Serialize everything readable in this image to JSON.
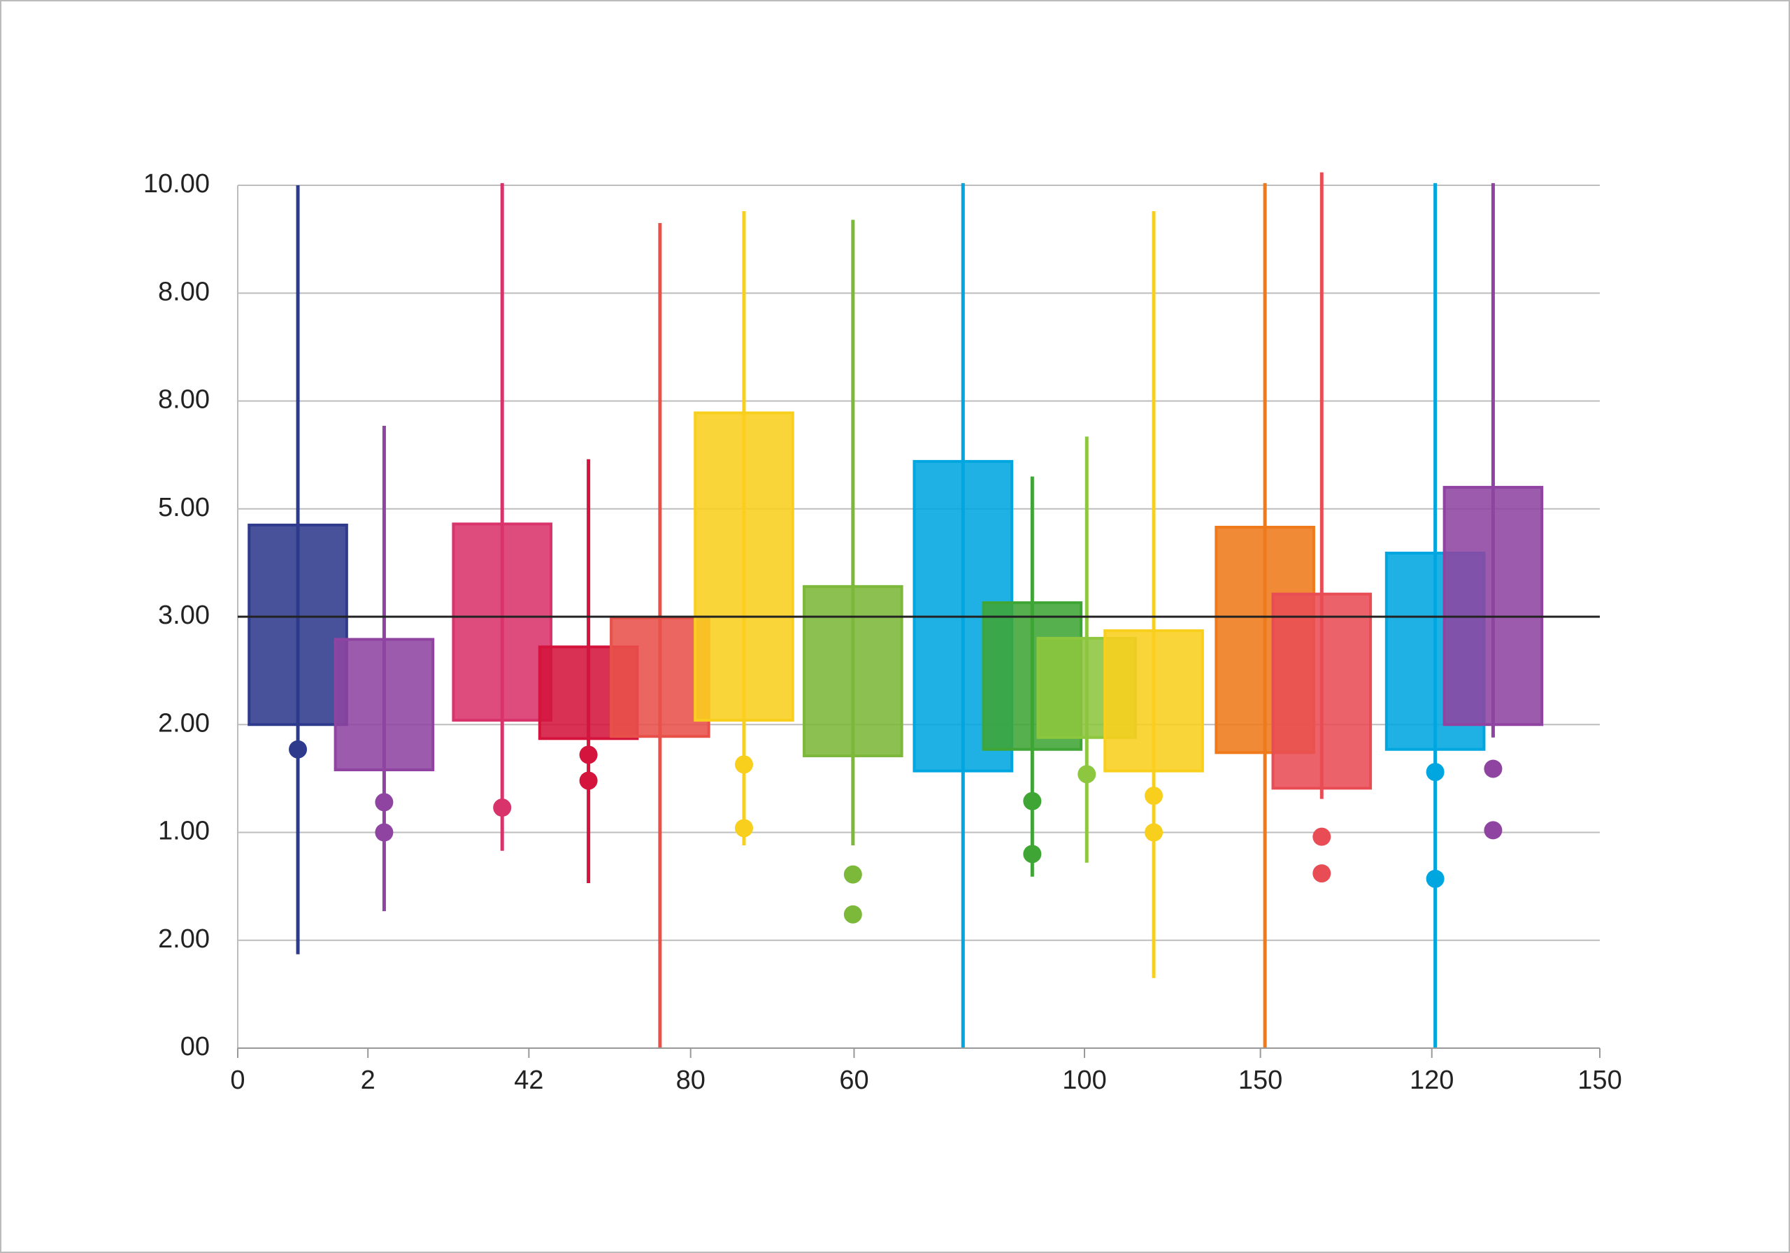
{
  "chart_data": {
    "type": "box",
    "reference_line": 4,
    "xlim": [
      0,
      12
    ],
    "xticks": [
      {
        "value": 0,
        "label": "0"
      },
      {
        "value": 1.147,
        "label": "2"
      },
      {
        "value": 2.565,
        "label": "42"
      },
      {
        "value": 3.99,
        "label": "80"
      },
      {
        "value": 5.43,
        "label": "60"
      },
      {
        "value": 7.46,
        "label": "100"
      },
      {
        "value": 9.01,
        "label": "150"
      },
      {
        "value": 10.52,
        "label": "120"
      },
      {
        "value": 12,
        "label": "150"
      }
    ],
    "ylim": [
      0,
      8
    ],
    "yticks": [
      {
        "value": 0,
        "label": "00"
      },
      {
        "value": 1,
        "label": "2.00"
      },
      {
        "value": 2,
        "label": "1.00"
      },
      {
        "value": 3,
        "label": "2.00"
      },
      {
        "value": 4,
        "label": "3.00"
      },
      {
        "value": 5,
        "label": "5.00"
      },
      {
        "value": 6,
        "label": "8.00"
      },
      {
        "value": 7,
        "label": "8.00"
      },
      {
        "value": 8,
        "label": "10.00"
      }
    ],
    "grid": true,
    "series": [
      {
        "color": "#2e3a8c",
        "x": 0.53,
        "low": 0.87,
        "q1": 3.0,
        "q3": 4.85,
        "high": 8.0,
        "outliers": [
          2.77
        ]
      },
      {
        "color": "#8e44a0",
        "x": 1.29,
        "low": 1.27,
        "q1": 2.58,
        "q3": 3.79,
        "high": 5.77,
        "outliers": [
          2.28,
          2.0
        ]
      },
      {
        "color": "#d9336b",
        "x": 2.33,
        "low": 1.83,
        "q1": 3.04,
        "q3": 4.86,
        "high": 8.02,
        "outliers": [
          2.23
        ]
      },
      {
        "color": "#d4143c",
        "x": 3.09,
        "low": 1.53,
        "q1": 2.87,
        "q3": 3.72,
        "high": 5.46,
        "outliers": [
          2.72,
          2.48
        ]
      },
      {
        "color": "#e8514a",
        "x": 3.72,
        "low": 0,
        "q1": 2.89,
        "q3": 3.99,
        "high": 7.65,
        "outliers": []
      },
      {
        "color": "#f9cf1e",
        "x": 4.46,
        "low": 1.88,
        "q1": 3.04,
        "q3": 5.89,
        "high": 7.76,
        "outliers": [
          2.63,
          2.04
        ]
      },
      {
        "color": "#7cb83a",
        "x": 5.42,
        "low": 1.88,
        "q1": 2.71,
        "q3": 4.28,
        "high": 7.68,
        "outliers": [
          1.61,
          1.24
        ]
      },
      {
        "color": "#00a6e0",
        "x": 6.39,
        "low": 0,
        "q1": 2.57,
        "q3": 5.44,
        "high": 8.02,
        "outliers": []
      },
      {
        "color": "#3fa535",
        "x": 7.0,
        "low": 1.59,
        "q1": 2.77,
        "q3": 4.13,
        "high": 5.3,
        "outliers": [
          2.29,
          1.8
        ]
      },
      {
        "color": "#8dc63f",
        "x": 7.48,
        "low": 1.72,
        "q1": 2.88,
        "q3": 3.8,
        "high": 5.67,
        "outliers": [
          2.54
        ]
      },
      {
        "color": "#f9cf1e",
        "x": 8.07,
        "low": 0.65,
        "q1": 2.57,
        "q3": 3.87,
        "high": 7.76,
        "outliers": [
          2.34,
          2.0
        ]
      },
      {
        "color": "#ee7a1b",
        "x": 9.05,
        "low": 0,
        "q1": 2.74,
        "q3": 4.83,
        "high": 8.02,
        "outliers": []
      },
      {
        "color": "#e84c55",
        "x": 9.55,
        "low": 2.31,
        "q1": 2.41,
        "q3": 4.21,
        "high": 8.12,
        "outliers": [
          1.96,
          1.62
        ]
      },
      {
        "color": "#00a6e0",
        "x": 10.55,
        "low": 0,
        "q1": 2.77,
        "q3": 4.59,
        "high": 8.02,
        "outliers": [
          2.56,
          1.57
        ]
      },
      {
        "color": "#8e44a0",
        "x": 11.06,
        "low": 2.88,
        "q1": 3.0,
        "q3": 5.2,
        "high": 8.02,
        "outliers": [
          2.59,
          2.02
        ]
      }
    ]
  }
}
